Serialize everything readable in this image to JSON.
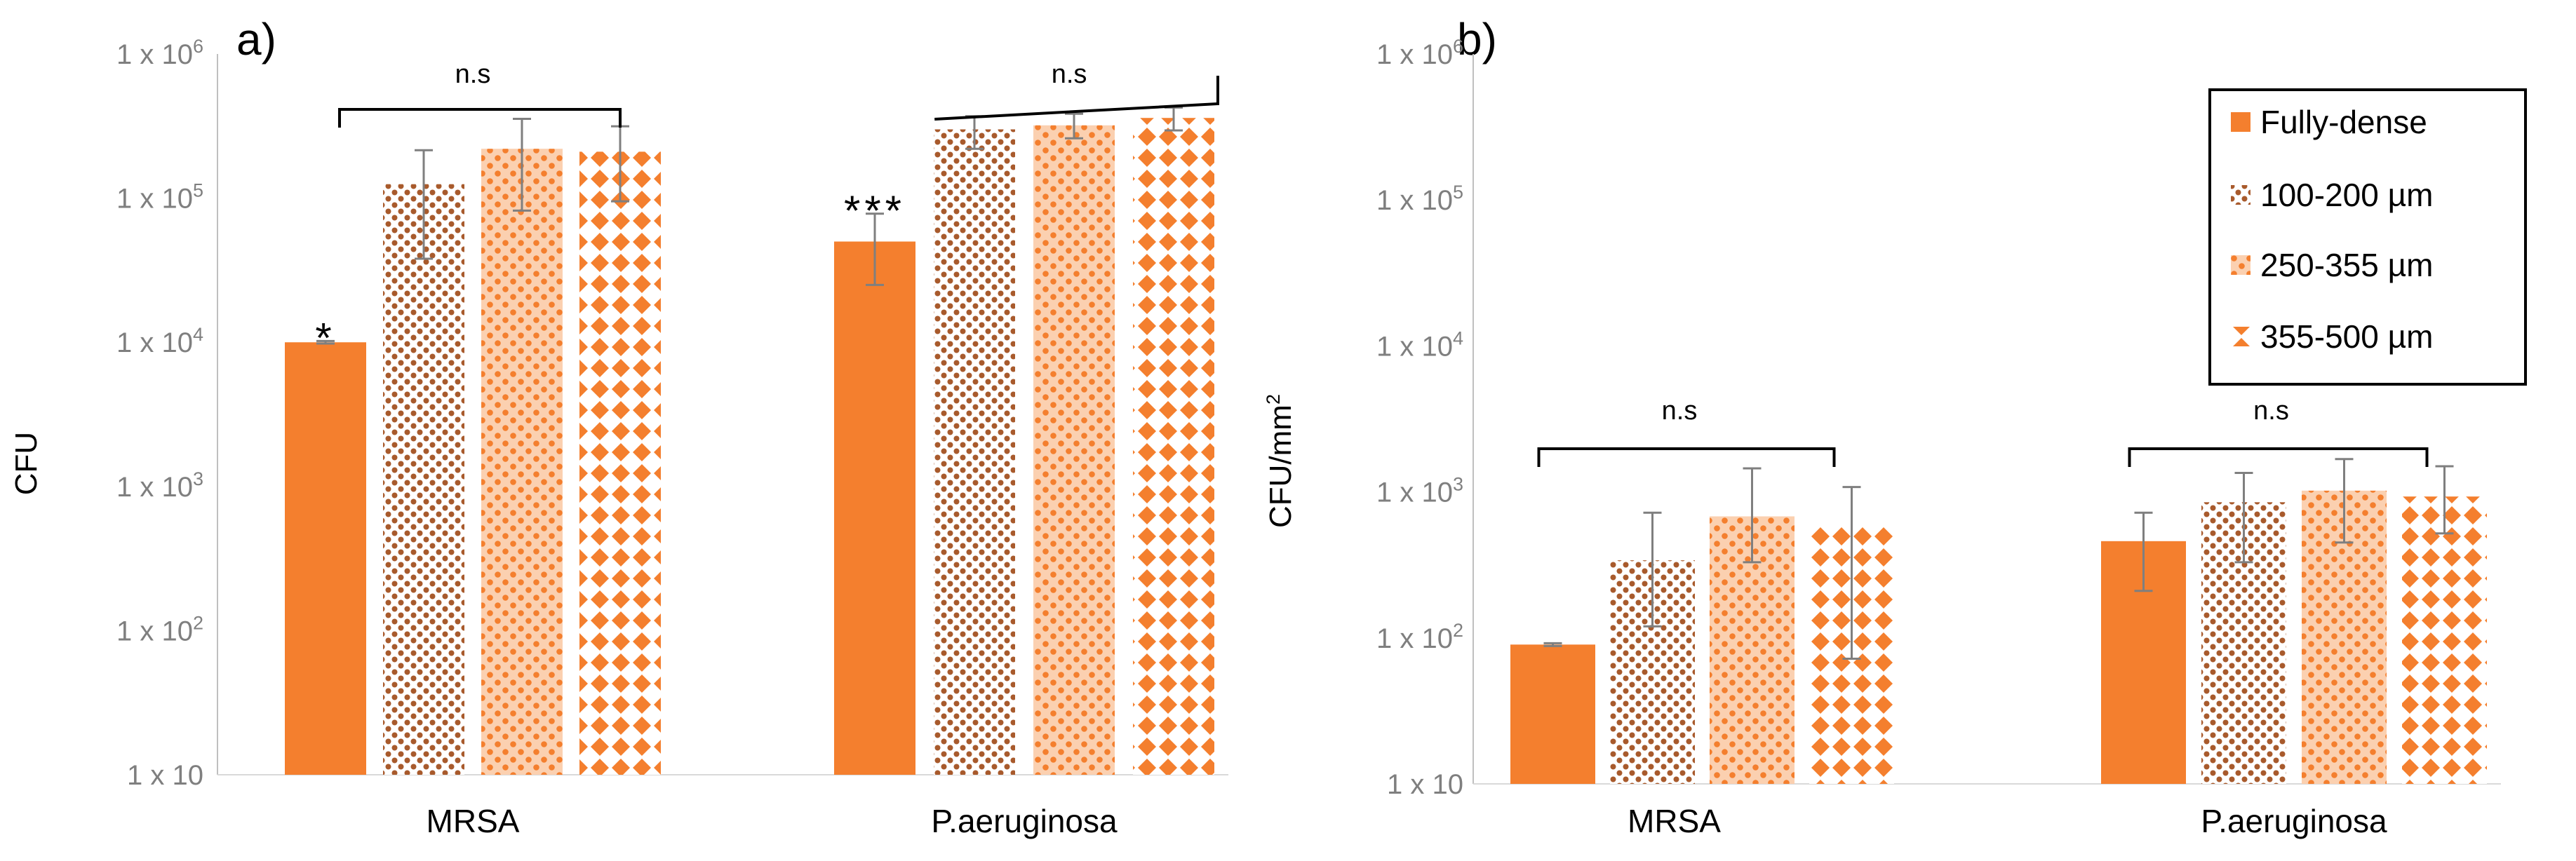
{
  "colors": {
    "orange": "#f47f2e",
    "brown": "#a85a2c",
    "pale": "#fbd0b0",
    "axis": "#7f7f7f",
    "text": "#000000"
  },
  "legend": [
    {
      "label": "Fully-dense",
      "pattern": "solid"
    },
    {
      "label": "100-200 µm",
      "pattern": "dots"
    },
    {
      "label": "250-355 µm",
      "pattern": "check"
    },
    {
      "label": "355-500 µm",
      "pattern": "diamond"
    }
  ],
  "chart_data": [
    {
      "panel": "a)",
      "type": "bar",
      "scale": "log",
      "ylabel": "CFU",
      "ylim": [
        10,
        1000000
      ],
      "yticks": [
        {
          "base": "1 x 10",
          "exp": ""
        },
        {
          "base": "1 x 10",
          "exp": "2"
        },
        {
          "base": "1 x 10",
          "exp": "3"
        },
        {
          "base": "1 x 10",
          "exp": "4"
        },
        {
          "base": "1 x 10",
          "exp": "5"
        },
        {
          "base": "1 x 10",
          "exp": "6"
        }
      ],
      "categories": [
        "MRSA",
        "P.aeruginosa"
      ],
      "series": [
        {
          "name": "Fully-dense",
          "values": [
            10000,
            50000
          ],
          "err_low": [
            9800,
            25000
          ],
          "err_high": [
            10200,
            78000
          ]
        },
        {
          "name": "100-200 µm",
          "values": [
            125000,
            300000
          ],
          "err_low": [
            38000,
            220000
          ],
          "err_high": [
            215000,
            370000
          ]
        },
        {
          "name": "250-355 µm",
          "values": [
            220000,
            320000
          ],
          "err_low": [
            82000,
            260000
          ],
          "err_high": [
            355000,
            385000
          ]
        },
        {
          "name": "355-500 µm",
          "values": [
            210000,
            360000
          ],
          "err_low": [
            95000,
            295000
          ],
          "err_high": [
            315000,
            425000
          ]
        }
      ],
      "annotations": [
        {
          "text": "*",
          "category": 0,
          "series": 0
        },
        {
          "text": "***",
          "category": 1,
          "series": 0
        }
      ],
      "significance": [
        {
          "text": "n.s",
          "category": 0
        },
        {
          "text": "n.s",
          "category": 1
        }
      ]
    },
    {
      "panel": "b)",
      "type": "bar",
      "scale": "log",
      "ylabel": "CFU/mm",
      "ylabel_sup": "2",
      "ylim": [
        10,
        1000000
      ],
      "yticks": [
        {
          "base": "1 x 10",
          "exp": ""
        },
        {
          "base": "1 x 10",
          "exp": "2"
        },
        {
          "base": "1 x 10",
          "exp": "3"
        },
        {
          "base": "1 x 10",
          "exp": "4"
        },
        {
          "base": "1 x 10",
          "exp": "5"
        },
        {
          "base": "1 x 10",
          "exp": "6"
        }
      ],
      "categories": [
        "MRSA",
        "P.aeruginosa"
      ],
      "series": [
        {
          "name": "Fully-dense",
          "values": [
            90,
            460
          ],
          "err_low": [
            88,
            210
          ],
          "err_high": [
            92,
            720
          ]
        },
        {
          "name": "100-200 µm",
          "values": [
            340,
            850
          ],
          "err_low": [
            120,
            330
          ],
          "err_high": [
            720,
            1350
          ]
        },
        {
          "name": "250-355 µm",
          "values": [
            680,
            1020
          ],
          "err_low": [
            330,
            450
          ],
          "err_high": [
            1450,
            1680
          ]
        },
        {
          "name": "355-500 µm",
          "values": [
            580,
            930
          ],
          "err_low": [
            72,
            520
          ],
          "err_high": [
            1080,
            1500
          ]
        }
      ],
      "annotations": [],
      "significance": [
        {
          "text": "n.s",
          "category": 0
        },
        {
          "text": "n.s",
          "category": 1
        }
      ]
    }
  ]
}
